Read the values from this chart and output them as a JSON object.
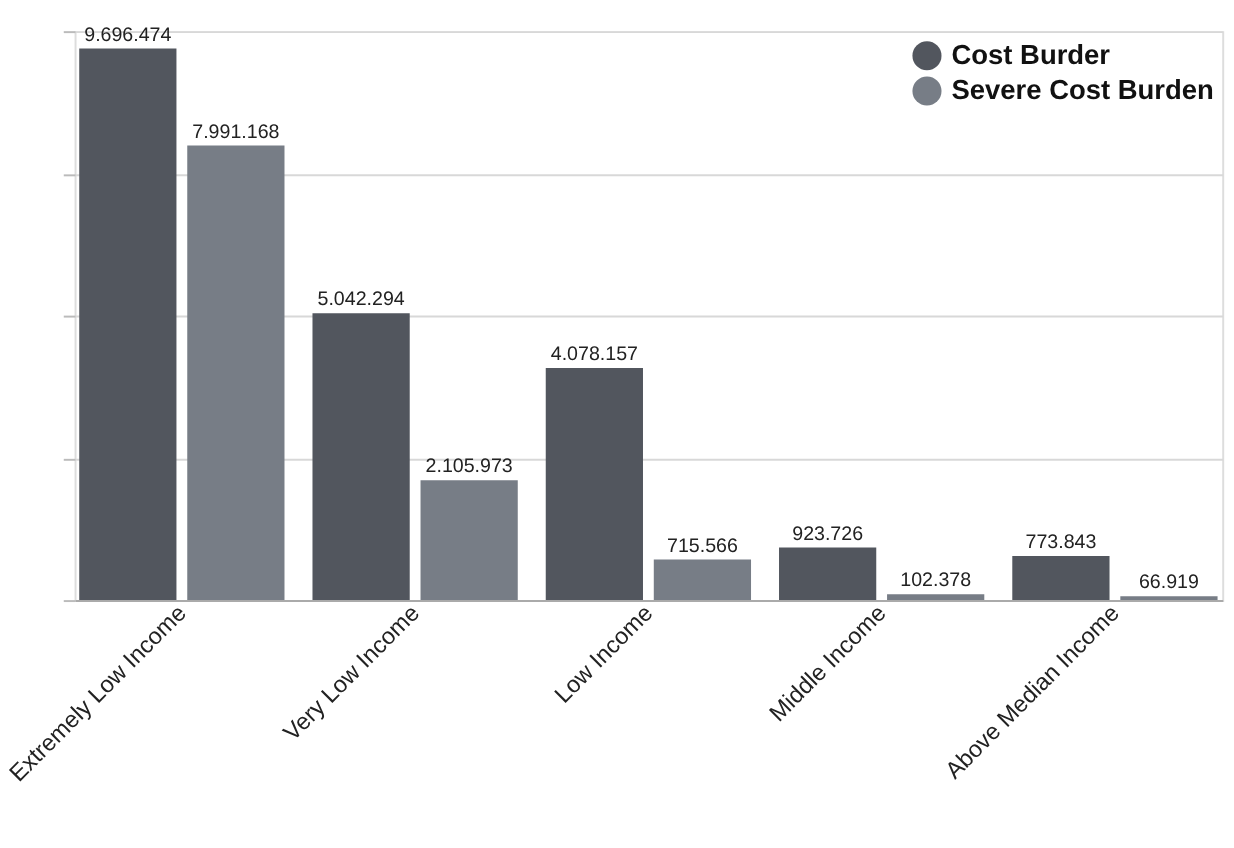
{
  "chart_data": {
    "type": "bar",
    "categories": [
      "Extremely Low Income",
      "Very Low Income",
      "Low Income",
      "Middle Income",
      "Above Median Income"
    ],
    "series": [
      {
        "name": "Cost Burder",
        "color": "#52565e",
        "values": [
          9696474,
          5042294,
          4078157,
          923726,
          773843
        ],
        "value_labels": [
          "9.696.474",
          "5.042.294",
          "4.078.157",
          "923.726",
          "773.843"
        ]
      },
      {
        "name": "Severe Cost Burden",
        "color": "#777d86",
        "values": [
          7991168,
          2105973,
          715566,
          102378,
          66919
        ],
        "value_labels": [
          "7.991.168",
          "2.105.973",
          "715.566",
          "102.378",
          "66.919"
        ]
      }
    ],
    "ylim": [
      0,
      10000000
    ],
    "yticks": [
      {
        "value": 0,
        "label": null
      },
      {
        "value": 2500000,
        "label": null
      },
      {
        "value": 5000000,
        "label": null
      },
      {
        "value": 7500000,
        "label": null
      },
      {
        "value": 10000000,
        "label": null
      }
    ],
    "grid": "y",
    "legend": "top right",
    "tick_labels": "x"
  }
}
